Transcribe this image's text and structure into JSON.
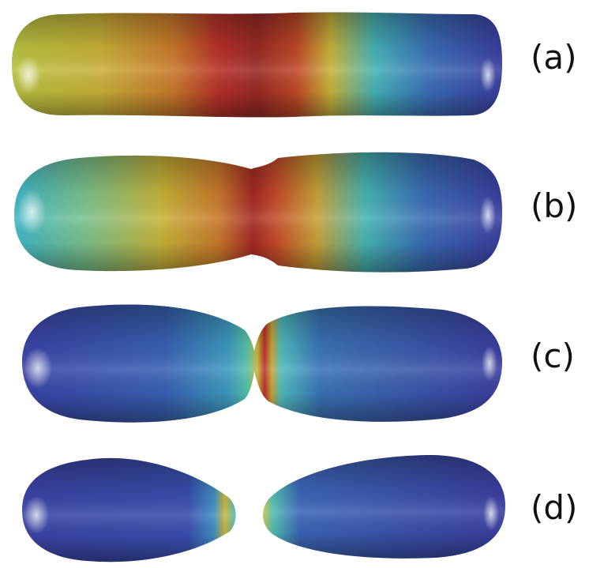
{
  "panels": [
    {
      "label": "(a)"
    },
    {
      "label": "(b)"
    },
    {
      "label": "(c)"
    },
    {
      "label": "(d)"
    }
  ],
  "colors": {
    "background": "#ffffff",
    "blue": "#3b3fa0",
    "cyan": "#3fb4c4",
    "yellow": "#c8c23a",
    "orange": "#c87a2a",
    "red": "#b8322a"
  }
}
